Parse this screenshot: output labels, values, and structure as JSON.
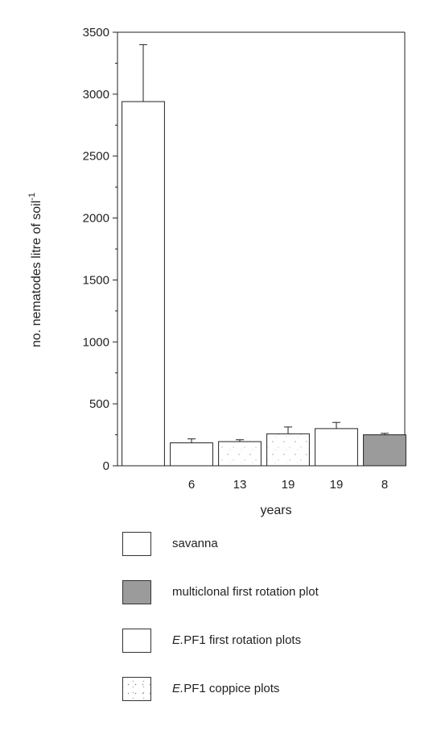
{
  "chart_data": {
    "type": "bar",
    "categories": [
      "",
      "6",
      "13",
      "19",
      "19",
      "8"
    ],
    "values": [
      2940,
      185,
      195,
      258,
      300,
      250
    ],
    "errors": [
      460,
      32,
      15,
      55,
      50,
      12
    ],
    "fills": [
      "white",
      "white",
      "dots",
      "dots",
      "white",
      "grey"
    ],
    "ylim": [
      0,
      3500
    ],
    "yticks": [
      0,
      500,
      1000,
      1500,
      2000,
      2500,
      3000,
      3500
    ],
    "ylabel": "no. nematodes litre of soil",
    "ylabel_sup": "-1",
    "xlabel": "years",
    "grid": false,
    "legend_position": "below"
  },
  "legend": {
    "items": [
      {
        "swatch": "white",
        "italic_prefix": "",
        "label": "savanna"
      },
      {
        "swatch": "grey",
        "italic_prefix": "",
        "label": "multiclonal first rotation plot"
      },
      {
        "swatch": "white",
        "italic_prefix": "E.",
        "label": "PF1 first rotation plots"
      },
      {
        "swatch": "dots",
        "italic_prefix": "E.",
        "label": "PF1 coppice plots"
      }
    ]
  },
  "colors": {
    "grey_fill": "#9b9b9b",
    "axis": "#222222"
  }
}
